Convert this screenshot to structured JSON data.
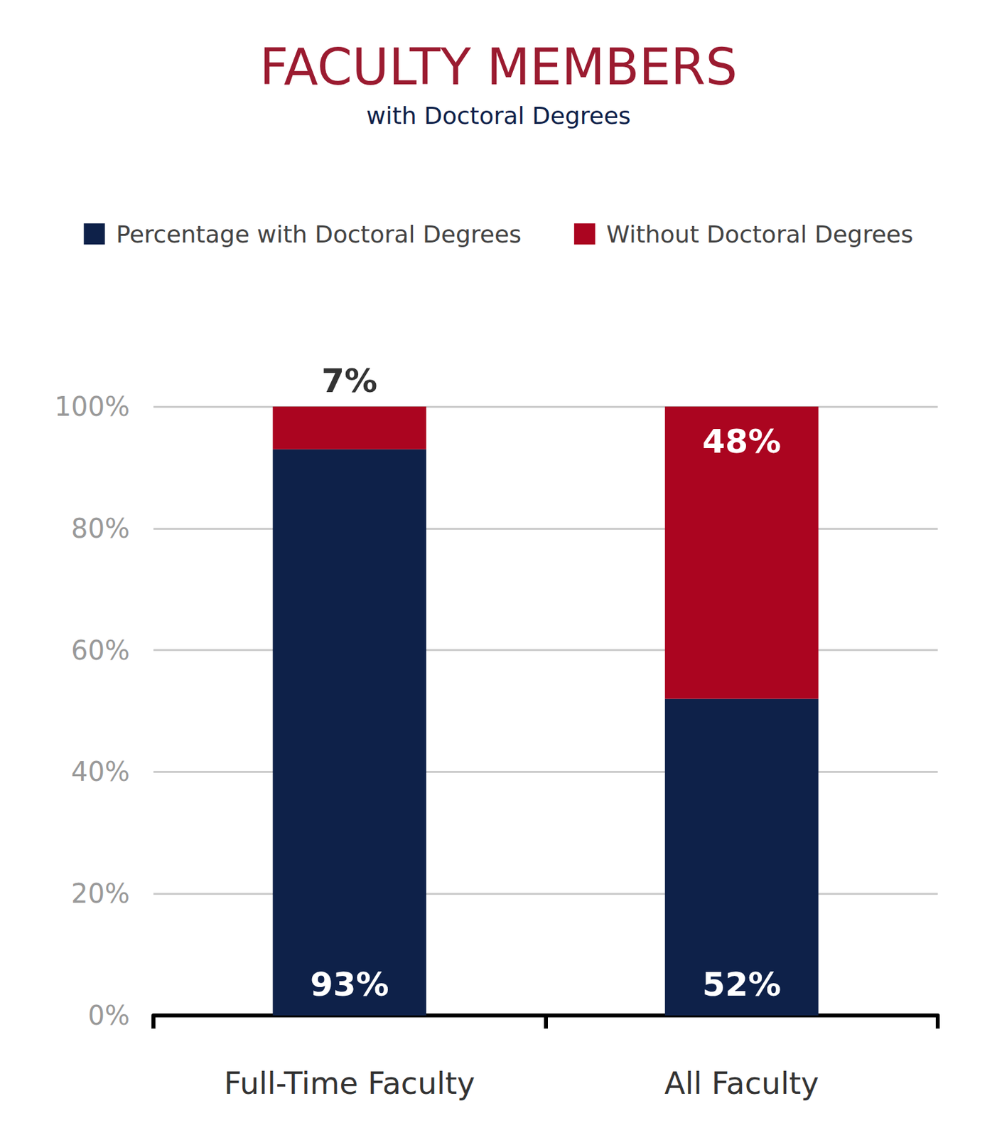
{
  "chart_data": {
    "type": "bar",
    "title": "FACULTY MEMBERS",
    "subtitle": "with Doctoral Degrees",
    "categories": [
      "Full-Time Faculty",
      "All Faculty"
    ],
    "series": [
      {
        "name": "Percentage with Doctoral Degrees",
        "color": "#0e2149",
        "values": [
          93,
          52
        ],
        "value_labels": [
          "93%",
          "52%"
        ]
      },
      {
        "name": "Without Doctoral Degrees",
        "color": "#ab0520",
        "values": [
          7,
          48
        ],
        "value_labels": [
          "7%",
          "48%"
        ]
      }
    ],
    "ylim": [
      0,
      100
    ],
    "yticks": [
      {
        "value": 0,
        "label": "0%"
      },
      {
        "value": 20,
        "label": "20%"
      },
      {
        "value": 40,
        "label": "40%"
      },
      {
        "value": 60,
        "label": "60%"
      },
      {
        "value": 80,
        "label": "80%"
      },
      {
        "value": 100,
        "label": "100%"
      }
    ],
    "grid": true,
    "legend": "top",
    "stacked": true,
    "data_labels": true
  }
}
